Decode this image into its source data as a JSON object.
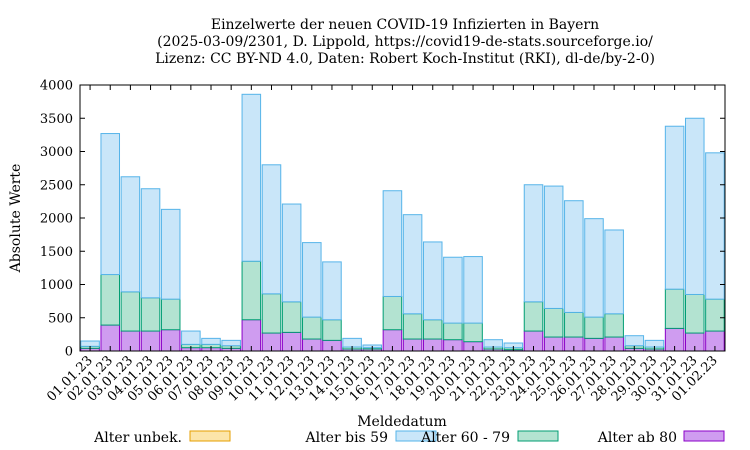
{
  "chart_data": {
    "type": "bar",
    "stacked": true,
    "title": [
      "Einzelwerte der neuen COVID-19 Infizierten in Bayern",
      "(2025-03-09/2301, D. Lippold, https://covid19-de-stats.sourceforge.io/",
      "Lizenz: CC BY-ND 4.0, Daten: Robert Koch-Institut (RKI), dl-de/by-2-0)"
    ],
    "xlabel": "Meldedatum",
    "ylabel": "Absolute Werte",
    "ylim": [
      0,
      4000
    ],
    "yticks": [
      0,
      500,
      1000,
      1500,
      2000,
      2500,
      3000,
      3500,
      4000
    ],
    "legend_position": "bottom",
    "categories": [
      "01.01.23",
      "02.01.23",
      "03.01.23",
      "04.01.23",
      "05.01.23",
      "06.01.23",
      "07.01.23",
      "08.01.23",
      "09.01.23",
      "10.01.23",
      "11.01.23",
      "12.01.23",
      "13.01.23",
      "14.01.23",
      "15.01.23",
      "16.01.23",
      "17.01.23",
      "18.01.23",
      "19.01.23",
      "20.01.23",
      "21.01.23",
      "22.01.23",
      "23.01.23",
      "24.01.23",
      "25.01.23",
      "26.01.23",
      "27.01.23",
      "28.01.23",
      "29.01.23",
      "30.01.23",
      "31.01.23",
      "01.02.23"
    ],
    "series": [
      {
        "name": "Alter ab 80",
        "color": "#cf9cf0",
        "stroke": "#8b00c8",
        "values": [
          40,
          390,
          300,
          300,
          320,
          50,
          50,
          40,
          470,
          270,
          280,
          180,
          160,
          30,
          30,
          320,
          180,
          180,
          170,
          140,
          30,
          20,
          300,
          210,
          210,
          190,
          210,
          40,
          30,
          340,
          270,
          300
        ]
      },
      {
        "name": "Alter 60 - 79",
        "color": "#b3e3d1",
        "stroke": "#009e73",
        "values": [
          30,
          760,
          590,
          500,
          460,
          50,
          50,
          40,
          880,
          590,
          460,
          330,
          310,
          30,
          20,
          500,
          380,
          290,
          250,
          280,
          30,
          30,
          440,
          430,
          370,
          320,
          350,
          40,
          30,
          590,
          580,
          480
        ]
      },
      {
        "name": "Alter bis 59",
        "color": "#c9e6f9",
        "stroke": "#56b4e9",
        "values": [
          80,
          2120,
          1730,
          1640,
          1350,
          200,
          90,
          80,
          2510,
          1940,
          1470,
          1120,
          870,
          130,
          40,
          1590,
          1490,
          1170,
          990,
          1000,
          110,
          70,
          1760,
          1840,
          1680,
          1480,
          1260,
          150,
          100,
          2450,
          2650,
          2200
        ]
      },
      {
        "name": "Alter unbek.",
        "color": "#fce5a9",
        "stroke": "#e69f00",
        "values": [
          0,
          0,
          0,
          0,
          0,
          0,
          0,
          0,
          0,
          0,
          0,
          0,
          0,
          0,
          0,
          0,
          0,
          0,
          0,
          0,
          0,
          0,
          0,
          0,
          0,
          0,
          0,
          0,
          0,
          0,
          0,
          0
        ]
      }
    ],
    "legend_order": [
      "Alter unbek.",
      "Alter bis 59",
      "Alter 60 - 79",
      "Alter ab 80"
    ]
  }
}
